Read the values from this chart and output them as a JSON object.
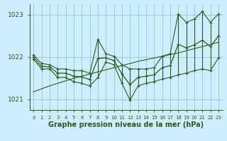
{
  "title": "Graphe pression niveau de la mer (hPa)",
  "bg_color": "#cceeff",
  "grid_color": "#99cccc",
  "line_color": "#2d5a1b",
  "hours": [
    0,
    1,
    2,
    3,
    4,
    5,
    6,
    7,
    8,
    9,
    10,
    11,
    12,
    13,
    14,
    15,
    16,
    17,
    18,
    19,
    20,
    21,
    22,
    23
  ],
  "y_max_vals": [
    1022.05,
    1021.85,
    1021.82,
    1021.72,
    1021.72,
    1021.68,
    1021.68,
    1021.62,
    1022.42,
    1022.08,
    1022.02,
    1021.82,
    1021.72,
    1021.72,
    1021.72,
    1021.75,
    1022.02,
    1022.08,
    1023.02,
    1022.82,
    1022.9,
    1023.08,
    1022.82,
    1023.02
  ],
  "y_min_vals": [
    1021.95,
    1021.72,
    1021.72,
    1021.52,
    1021.52,
    1021.42,
    1021.38,
    1021.32,
    1021.52,
    1021.88,
    1021.82,
    1021.38,
    1020.98,
    1021.32,
    1021.38,
    1021.42,
    1021.48,
    1021.52,
    1021.58,
    1021.62,
    1021.68,
    1021.72,
    1021.68,
    1021.98
  ],
  "y_avg_vals": [
    1022.0,
    1021.78,
    1021.77,
    1021.62,
    1021.62,
    1021.55,
    1021.53,
    1021.47,
    1021.97,
    1021.98,
    1021.92,
    1021.6,
    1021.35,
    1021.52,
    1021.55,
    1021.58,
    1021.75,
    1021.8,
    1022.3,
    1022.22,
    1022.29,
    1022.4,
    1022.25,
    1022.5
  ],
  "y_trend": [
    1021.18,
    1021.25,
    1021.32,
    1021.38,
    1021.44,
    1021.5,
    1021.55,
    1021.6,
    1021.65,
    1021.7,
    1021.75,
    1021.8,
    1021.85,
    1021.9,
    1021.94,
    1021.98,
    1022.02,
    1022.06,
    1022.1,
    1022.15,
    1022.2,
    1022.25,
    1022.3,
    1022.35
  ],
  "ylim": [
    1020.75,
    1023.25
  ],
  "yticks": [
    1021,
    1022,
    1023
  ],
  "tick_fontsize": 6.5,
  "title_fontsize": 7.0
}
